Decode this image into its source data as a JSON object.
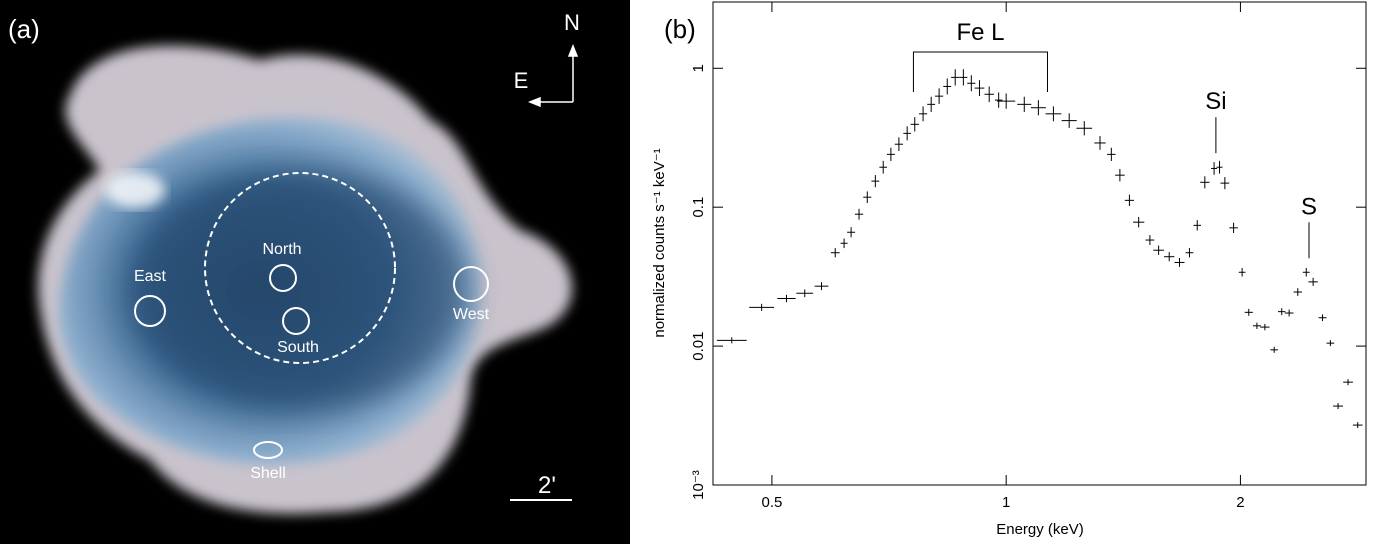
{
  "panel_a": {
    "label": "(a)",
    "north": "N",
    "east": "E",
    "regions": [
      "East",
      "North",
      "South",
      "West",
      "Shell"
    ],
    "scale_bar": "2'"
  },
  "chart_data": {
    "type": "scatter",
    "label": "(b)",
    "x_label": "Energy (keV)",
    "y_label": "normalized counts s⁻¹ keV⁻¹",
    "log_x": true,
    "log_y": true,
    "xlim": [
      0.42,
      2.9
    ],
    "ylim": [
      0.001,
      3
    ],
    "xticks": [
      0.5,
      1,
      2
    ],
    "yticks": [
      {
        "value": 0.001,
        "label": "10⁻³"
      },
      0.01,
      0.1,
      1
    ],
    "color": "#000000",
    "x": [
      0.444,
      0.485,
      0.522,
      0.551,
      0.579,
      0.603,
      0.619,
      0.632,
      0.647,
      0.663,
      0.679,
      0.695,
      0.711,
      0.728,
      0.746,
      0.763,
      0.782,
      0.801,
      0.82,
      0.84,
      0.86,
      0.881,
      0.902,
      0.924,
      0.951,
      0.978,
      1.0,
      1.055,
      1.1,
      1.15,
      1.205,
      1.26,
      1.32,
      1.365,
      1.4,
      1.44,
      1.48,
      1.53,
      1.57,
      1.62,
      1.67,
      1.72,
      1.76,
      1.8,
      1.85,
      1.88,
      1.91,
      1.96,
      2.01,
      2.05,
      2.1,
      2.15,
      2.21,
      2.26,
      2.31,
      2.37,
      2.43,
      2.48,
      2.55,
      2.61,
      2.67,
      2.75,
      2.83
    ],
    "values": [
      0.011,
      0.019,
      0.022,
      0.024,
      0.027,
      0.047,
      0.055,
      0.066,
      0.089,
      0.118,
      0.154,
      0.194,
      0.24,
      0.284,
      0.34,
      0.395,
      0.47,
      0.55,
      0.63,
      0.74,
      0.86,
      0.86,
      0.78,
      0.72,
      0.65,
      0.59,
      0.58,
      0.55,
      0.52,
      0.47,
      0.42,
      0.37,
      0.29,
      0.24,
      0.17,
      0.112,
      0.078,
      0.058,
      0.049,
      0.044,
      0.04,
      0.047,
      0.074,
      0.151,
      0.19,
      0.194,
      0.149,
      0.071,
      0.034,
      0.0175,
      0.014,
      0.0137,
      0.0094,
      0.0177,
      0.0173,
      0.0245,
      0.034,
      0.029,
      0.016,
      0.0105,
      0.0037,
      0.0055,
      0.0027
    ],
    "annotations": [
      {
        "text": "Fe L",
        "x": [
          0.76,
          1.13
        ]
      },
      {
        "text": "Si",
        "x": 1.86
      },
      {
        "text": "S",
        "x": 2.45
      }
    ]
  }
}
